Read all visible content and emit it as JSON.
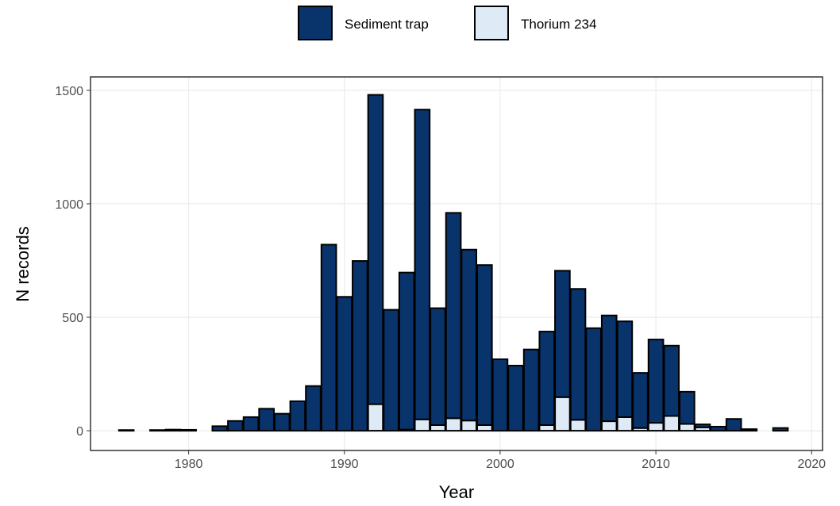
{
  "chart_data": {
    "type": "bar",
    "stacked": true,
    "x": [
      1976,
      1978,
      1979,
      1980,
      1982,
      1983,
      1984,
      1985,
      1986,
      1987,
      1988,
      1989,
      1990,
      1991,
      1992,
      1993,
      1994,
      1995,
      1996,
      1997,
      1998,
      1999,
      2000,
      2001,
      2002,
      2003,
      2004,
      2005,
      2006,
      2007,
      2008,
      2009,
      2010,
      2011,
      2012,
      2013,
      2014,
      2015,
      2016,
      2018
    ],
    "series": [
      {
        "name": "Sediment trap",
        "color": "#08336b",
        "values": [
          3,
          3,
          5,
          4,
          20,
          43,
          60,
          97,
          75,
          130,
          197,
          820,
          590,
          748,
          1363,
          533,
          692,
          1365,
          515,
          905,
          753,
          705,
          315,
          287,
          358,
          412,
          557,
          577,
          452,
          466,
          422,
          243,
          367,
          310,
          142,
          13,
          18,
          52,
          7,
          12
        ]
      },
      {
        "name": "Thorium 234",
        "color": "#deebf7",
        "values": [
          0,
          0,
          0,
          0,
          0,
          0,
          0,
          0,
          0,
          0,
          0,
          0,
          0,
          0,
          117,
          0,
          5,
          50,
          25,
          55,
          45,
          25,
          0,
          0,
          0,
          25,
          148,
          48,
          0,
          42,
          60,
          12,
          35,
          65,
          30,
          15,
          0,
          0,
          0,
          0
        ]
      }
    ],
    "stack_order": [
      "Thorium 234",
      "Sediment trap"
    ],
    "xlabel": "Year",
    "ylabel": "N records",
    "xlim": [
      1973.7,
      2020.7
    ],
    "xticks": [
      1980,
      1990,
      2000,
      2010,
      2020
    ],
    "ylim": [
      -87,
      1559
    ],
    "yticks": [
      0,
      500,
      1000,
      1500
    ],
    "grid": true,
    "legend": "top"
  }
}
